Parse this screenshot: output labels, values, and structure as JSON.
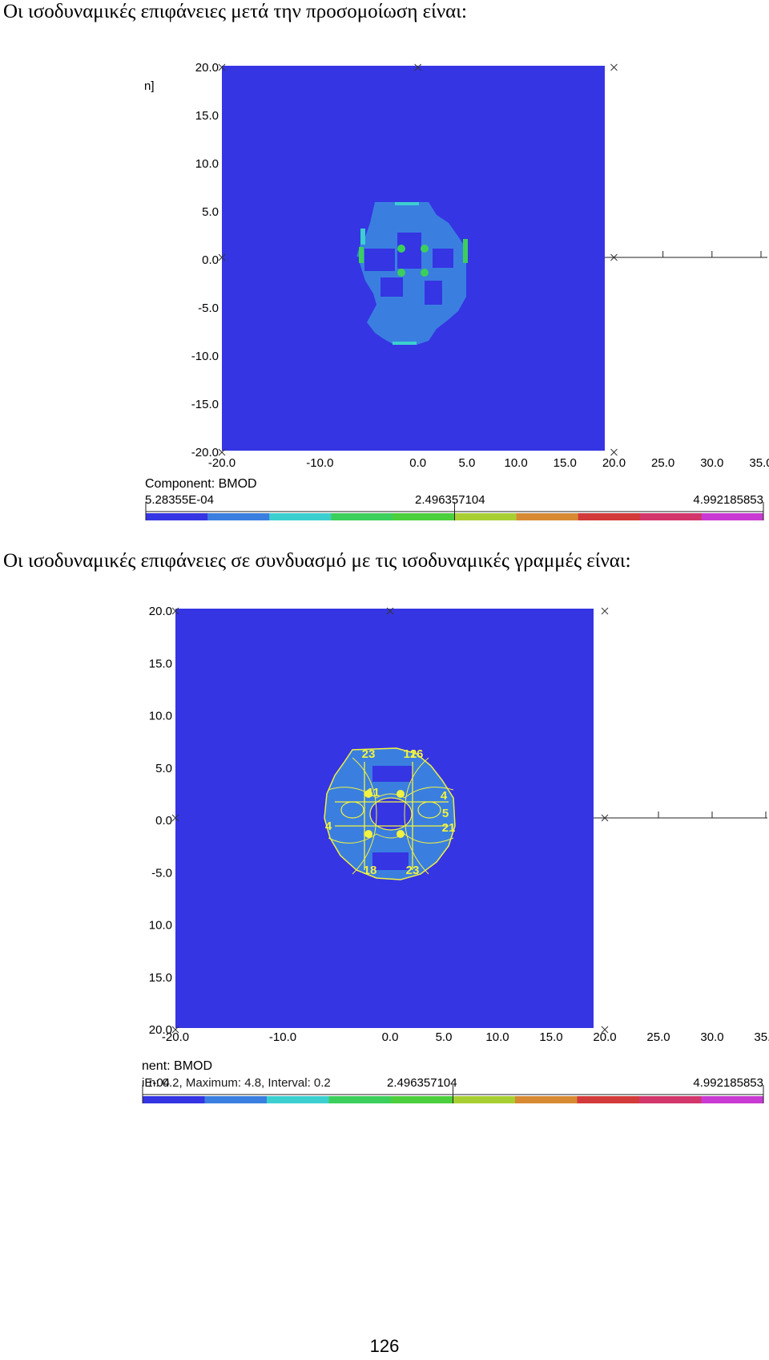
{
  "captions": {
    "first": "Οι ισοδυναμικές επιφάνειες μετά την προσομοίωση είναι:",
    "second": "Οι ισοδυναμικές επιφάνειες σε συνδυασμό με τις ισοδυναμικές γραμμές είναι:"
  },
  "page_number": "126",
  "colors": {
    "field_background": "#3535e3",
    "region_fill": "#3a7fe0",
    "contour_lines": "#f2f240",
    "colorbar": [
      "#3535e3",
      "#3a7fe0",
      "#3ccfcf",
      "#3ccf5c",
      "#4bcf3c",
      "#a8cf32",
      "#d88a33",
      "#d33a3a",
      "#d3366b",
      "#c93ad3"
    ]
  },
  "chart_data": [
    {
      "type": "heatmap",
      "title": "",
      "xlabel": "",
      "ylabel": "",
      "y_axis_unit_fragment": "n]",
      "x_ticks": [
        "-20.0",
        "-10.0",
        "0.0",
        "5.0",
        "10.0",
        "15.0",
        "20.0",
        "25.0",
        "30.0",
        "35.0"
      ],
      "y_ticks": [
        "20.0",
        "15.0",
        "10.0",
        "5.0",
        "0.0",
        "-5.0",
        "-10.0",
        "-15.0",
        "-20.0"
      ],
      "xlim": [
        -20,
        35
      ],
      "ylim": [
        -20,
        20
      ],
      "legend": {
        "component": "Component: BMOD",
        "min": "5.28355E-04",
        "mid": "2.496357104",
        "max": "4.992185853"
      }
    },
    {
      "type": "heatmap",
      "title": "",
      "xlabel": "",
      "ylabel": "",
      "x_ticks": [
        "-20.0",
        "-10.0",
        "0.0",
        "5.0",
        "10.0",
        "15.0",
        "20.0",
        "25.0",
        "30.0",
        "35.0"
      ],
      "y_ticks": [
        "20.0",
        "15.0",
        "10.0",
        "5.0",
        "0.0",
        "-5.0",
        "10.0",
        "15.0",
        "20.0"
      ],
      "xlim": [
        -20,
        35
      ],
      "ylim": [
        -20,
        20
      ],
      "contour_labels": [
        "23",
        "12",
        "16",
        "11",
        "4",
        "5",
        "21",
        "4",
        "18",
        "23"
      ],
      "legend": {
        "component": "nent: BMOD",
        "min": "iE-04",
        "stats": "n: 0.2,  Maximum: 4.8,  Interval: 0.2",
        "mid": "2.496357104",
        "max": "4.992185853"
      }
    }
  ]
}
